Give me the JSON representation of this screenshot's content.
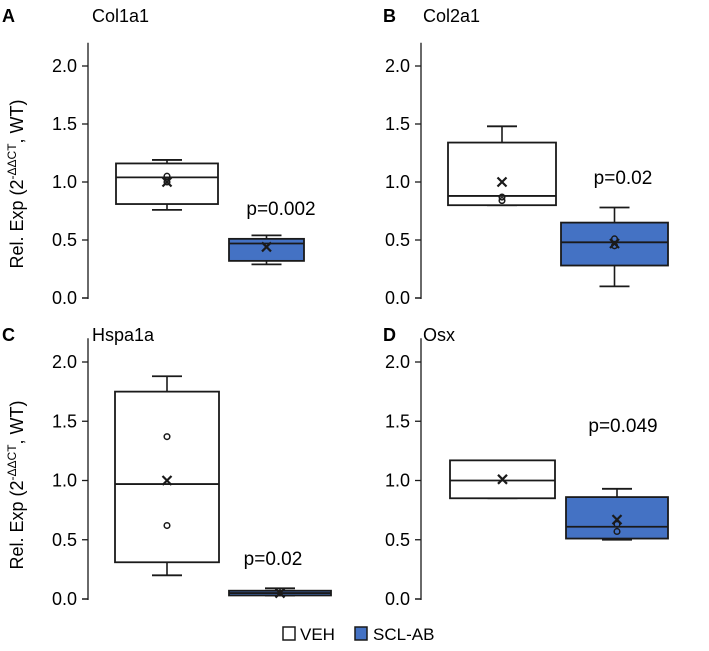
{
  "figure": {
    "ylabel_main": "Rel. Exp (2",
    "ylabel_sup": "-ΔΔCT",
    "ylabel_tail": ", WT)",
    "yticks": [
      "0.0",
      "0.5",
      "1.0",
      "1.5",
      "2.0"
    ]
  },
  "legend": [
    {
      "label": "VEH",
      "color": "#ffffff"
    },
    {
      "label": "SCL-AB",
      "color": "#4472c4"
    }
  ],
  "colors": {
    "veh": "#ffffff",
    "scl": "#4472c4",
    "stroke": "#1a1a1a"
  },
  "chart_data": [
    {
      "type": "boxplot",
      "panel": "A",
      "title": "Col1a1",
      "ylim": [
        0,
        2.2
      ],
      "groups": [
        "VEH",
        "SCL-AB"
      ],
      "annotation": "p=0.002",
      "boxes": [
        {
          "group": "VEH",
          "whisker_low": 0.76,
          "q1": 0.81,
          "median": 1.04,
          "q3": 1.16,
          "whisker_high": 1.19,
          "mean": 1.0,
          "points": [
            1.05,
            1.0
          ]
        },
        {
          "group": "SCL-AB",
          "whisker_low": 0.29,
          "q1": 0.32,
          "median": 0.47,
          "q3": 0.51,
          "whisker_high": 0.54,
          "mean": 0.44,
          "points": []
        }
      ]
    },
    {
      "type": "boxplot",
      "panel": "B",
      "title": "Col2a1",
      "ylim": [
        0,
        2.2
      ],
      "groups": [
        "VEH",
        "SCL-AB"
      ],
      "annotation": "p=0.02",
      "boxes": [
        {
          "group": "VEH",
          "whisker_low": 0.8,
          "q1": 0.8,
          "median": 0.88,
          "q3": 1.34,
          "whisker_high": 1.48,
          "mean": 1.0,
          "points": [
            0.87,
            0.84
          ]
        },
        {
          "group": "SCL-AB",
          "whisker_low": 0.1,
          "q1": 0.28,
          "median": 0.48,
          "q3": 0.65,
          "whisker_high": 0.78,
          "mean": 0.47,
          "points": [
            0.51,
            0.45
          ]
        }
      ]
    },
    {
      "type": "boxplot",
      "panel": "C",
      "title": "Hspa1a",
      "ylim": [
        0,
        2.2
      ],
      "groups": [
        "VEH",
        "SCL-AB"
      ],
      "annotation": "p=0.02",
      "boxes": [
        {
          "group": "VEH",
          "whisker_low": 0.2,
          "q1": 0.31,
          "median": 0.97,
          "q3": 1.75,
          "whisker_high": 1.88,
          "mean": 1.0,
          "points": [
            1.37,
            0.62
          ]
        },
        {
          "group": "SCL-AB",
          "whisker_low": 0.03,
          "q1": 0.03,
          "median": 0.05,
          "q3": 0.07,
          "whisker_high": 0.09,
          "mean": 0.05,
          "points": []
        }
      ]
    },
    {
      "type": "boxplot",
      "panel": "D",
      "title": "Osx",
      "ylim": [
        0,
        2.2
      ],
      "groups": [
        "VEH",
        "SCL-AB"
      ],
      "annotation": "p=0.049",
      "boxes": [
        {
          "group": "VEH",
          "whisker_low": 0.85,
          "q1": 0.85,
          "median": 1.0,
          "q3": 1.17,
          "whisker_high": 1.17,
          "mean": 1.01,
          "points": []
        },
        {
          "group": "SCL-AB",
          "whisker_low": 0.5,
          "q1": 0.51,
          "median": 0.61,
          "q3": 0.86,
          "whisker_high": 0.93,
          "mean": 0.67,
          "points": [
            0.63,
            0.57
          ]
        }
      ]
    }
  ]
}
